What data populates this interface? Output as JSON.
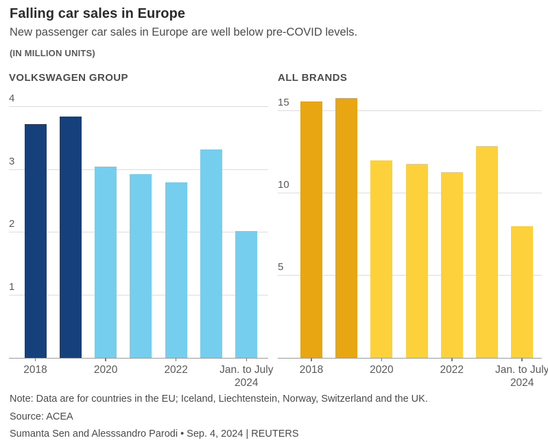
{
  "header": {
    "title": "Falling car sales in Europe",
    "subtitle": "New passenger car sales in Europe are well below pre-COVID levels.",
    "units_label": "(IN MILLION UNITS)"
  },
  "chart_data": [
    {
      "type": "bar",
      "title": "VOLKSWAGEN GROUP",
      "categories": [
        "2018",
        "2019",
        "2020",
        "2021",
        "2022",
        "2023",
        "Jan. to July 2024"
      ],
      "values": [
        3.73,
        3.85,
        3.05,
        2.93,
        2.8,
        3.32,
        2.02
      ],
      "ylabel": "million units",
      "ylim": [
        0,
        4.22
      ],
      "yticks": [
        1,
        2,
        3,
        4
      ],
      "xtick_labels": [
        {
          "bar_index": 0,
          "lines": [
            "2018"
          ]
        },
        {
          "bar_index": 2,
          "lines": [
            "2020"
          ]
        },
        {
          "bar_index": 4,
          "lines": [
            "2022"
          ]
        },
        {
          "bar_index": 6,
          "lines": [
            "Jan. to July",
            "2024"
          ]
        }
      ],
      "colors": {
        "highlight": "#16407c",
        "base": "#76ceef"
      },
      "highlight_bars": 2,
      "grid": true,
      "legend": "none"
    },
    {
      "type": "bar",
      "title": "ALL BRANDS",
      "categories": [
        "2018",
        "2019",
        "2020",
        "2021",
        "2022",
        "2023",
        "Jan. to July 2024"
      ],
      "values": [
        15.6,
        15.8,
        12.0,
        11.8,
        11.3,
        12.9,
        8.0
      ],
      "ylabel": "million units",
      "ylim": [
        0,
        16.1
      ],
      "yticks": [
        5,
        10,
        15
      ],
      "xtick_labels": [
        {
          "bar_index": 0,
          "lines": [
            "2018"
          ]
        },
        {
          "bar_index": 2,
          "lines": [
            "2020"
          ]
        },
        {
          "bar_index": 4,
          "lines": [
            "2022"
          ]
        },
        {
          "bar_index": 6,
          "lines": [
            "Jan. to July",
            "2024"
          ]
        }
      ],
      "colors": {
        "highlight": "#e8a613",
        "base": "#fdd13b"
      },
      "highlight_bars": 2,
      "grid": true,
      "legend": "none"
    }
  ],
  "footer": {
    "note": "Note: Data are for countries in the EU; Iceland, Liechtenstein, Norway, Switzerland and the UK.",
    "source": "Source: ACEA",
    "byline": "Sumanta Sen and Alesssandro Parodi • Sep. 4, 2024 | REUTERS"
  }
}
